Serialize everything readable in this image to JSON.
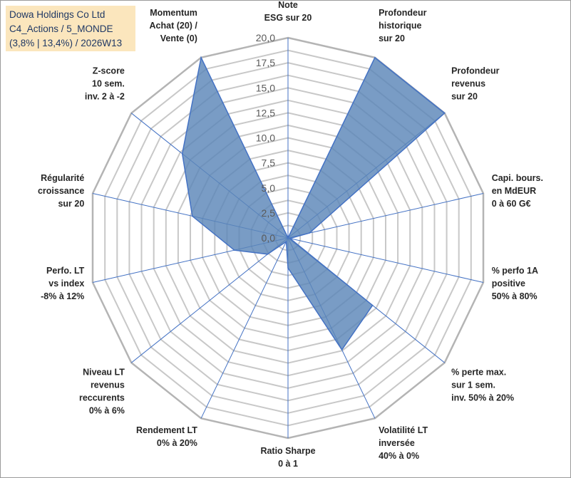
{
  "title_box": {
    "line1": "Dowa Holdings Co Ltd",
    "line2": "C4_Actions / 5_MONDE",
    "line3": "(3,8% | 13,4%) / 2026W13"
  },
  "chart_data": {
    "type": "radar",
    "rmax": 20,
    "ticks": [
      "0,0",
      "2,5",
      "5,0",
      "7,5",
      "10,0",
      "12,5",
      "15,0",
      "17,5",
      "20,0"
    ],
    "tick_values": [
      0,
      2.5,
      5,
      7.5,
      10,
      12.5,
      15,
      17.5,
      20
    ],
    "grid_step": 1.25,
    "colors": {
      "fill": "#5b86b8",
      "stroke": "#4472c4",
      "grid": "#c8c8c8",
      "axis": "#4472c4"
    },
    "categories": [
      {
        "lines": [
          "Note",
          "ESG sur 20"
        ]
      },
      {
        "lines": [
          "Profondeur",
          "historique",
          "sur 20"
        ]
      },
      {
        "lines": [
          "Profondeur",
          "revenus",
          "sur 20"
        ]
      },
      {
        "lines": [
          "Capi. bours.",
          "en MdEUR",
          "0 à 60 G€"
        ]
      },
      {
        "lines": [
          "% perfo 1A",
          "positive",
          "50% à 80%"
        ]
      },
      {
        "lines": [
          "% perte max.",
          "sur 1 sem.",
          "inv. 50% à 20%"
        ]
      },
      {
        "lines": [
          "Volatilité LT",
          "inversée",
          "40% à 0%"
        ]
      },
      {
        "lines": [
          "Ratio Sharpe",
          "0 à 1"
        ]
      },
      {
        "lines": [
          "Rendement LT",
          "0% à 20%"
        ]
      },
      {
        "lines": [
          "Niveau LT",
          "revenus",
          "reccurents",
          "0% à 6%"
        ]
      },
      {
        "lines": [
          "Perfo. LT",
          "vs index",
          "-8% à 12%"
        ]
      },
      {
        "lines": [
          "Régularité",
          "croissance",
          "sur 20"
        ]
      },
      {
        "lines": [
          "Z-score",
          "10 sem.",
          "inv. 2 à -2"
        ]
      },
      {
        "lines": [
          "Momentum",
          "Achat (20) /",
          "Vente (0)"
        ]
      }
    ],
    "series": [
      {
        "name": "Dowa Holdings Co Ltd",
        "values": [
          0,
          20,
          20,
          2.2,
          0.2,
          10.8,
          12.4,
          3.0,
          0.4,
          2.6,
          5.5,
          9.8,
          13.5,
          20
        ]
      }
    ]
  }
}
